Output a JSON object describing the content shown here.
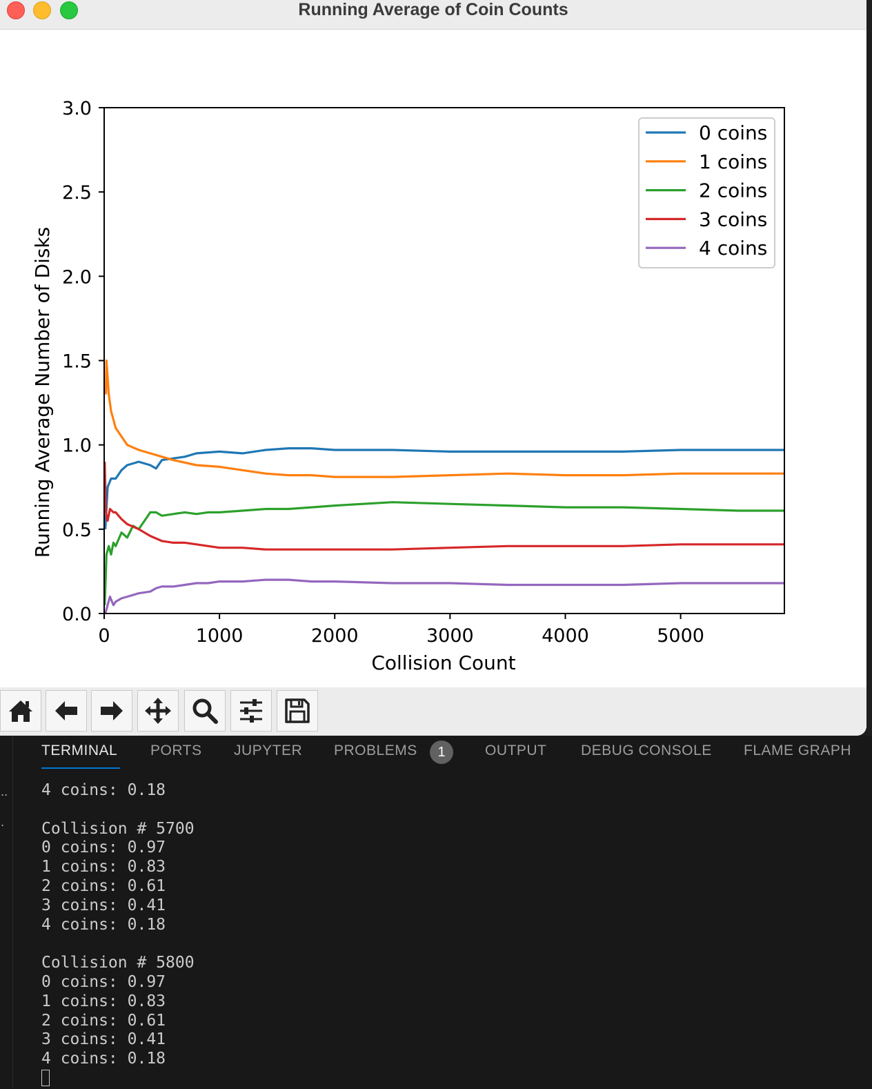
{
  "window": {
    "title": "Running Average of Coin Counts"
  },
  "chart_data": {
    "type": "line",
    "title": "",
    "xlabel": "Collision Count",
    "ylabel": "Running Average Number of Disks",
    "xlim": [
      0,
      5900
    ],
    "ylim": [
      0,
      3.0
    ],
    "xticks": [
      0,
      1000,
      2000,
      3000,
      4000,
      5000
    ],
    "yticks": [
      0.0,
      0.5,
      1.0,
      1.5,
      2.0,
      2.5,
      3.0
    ],
    "ytick_labels": [
      "0.0",
      "0.5",
      "1.0",
      "1.5",
      "2.0",
      "2.5",
      "3.0"
    ],
    "grid": false,
    "legend_position": "upper-right",
    "series": [
      {
        "name": "0 coins",
        "color": "#1f77b4",
        "x": [
          10,
          30,
          60,
          100,
          150,
          200,
          300,
          400,
          450,
          500,
          600,
          700,
          800,
          1000,
          1200,
          1400,
          1600,
          1800,
          2000,
          2200,
          2500,
          3000,
          3500,
          4000,
          4500,
          5000,
          5500,
          5900
        ],
        "y": [
          0.5,
          0.75,
          0.8,
          0.8,
          0.85,
          0.88,
          0.9,
          0.88,
          0.86,
          0.91,
          0.92,
          0.93,
          0.95,
          0.96,
          0.95,
          0.97,
          0.98,
          0.98,
          0.97,
          0.97,
          0.97,
          0.96,
          0.96,
          0.96,
          0.96,
          0.97,
          0.97,
          0.97
        ]
      },
      {
        "name": "1 coins",
        "color": "#ff7f0e",
        "x": [
          15,
          20,
          40,
          60,
          80,
          100,
          150,
          200,
          300,
          400,
          500,
          600,
          800,
          1000,
          1200,
          1400,
          1600,
          1800,
          2000,
          2200,
          2500,
          3000,
          3500,
          4000,
          4500,
          5000,
          5500,
          5900
        ],
        "y": [
          1.3,
          1.5,
          1.3,
          1.2,
          1.15,
          1.1,
          1.05,
          1.0,
          0.97,
          0.95,
          0.93,
          0.91,
          0.88,
          0.87,
          0.85,
          0.83,
          0.82,
          0.82,
          0.81,
          0.81,
          0.81,
          0.82,
          0.83,
          0.82,
          0.82,
          0.83,
          0.83,
          0.83
        ]
      },
      {
        "name": "2 coins",
        "color": "#2ca02c",
        "x": [
          5,
          20,
          40,
          60,
          80,
          100,
          150,
          200,
          250,
          300,
          350,
          400,
          450,
          500,
          600,
          700,
          800,
          900,
          1000,
          1200,
          1400,
          1600,
          1800,
          2000,
          2500,
          3000,
          3500,
          4000,
          4500,
          5000,
          5500,
          5900
        ],
        "y": [
          0.05,
          0.35,
          0.4,
          0.35,
          0.42,
          0.4,
          0.48,
          0.45,
          0.52,
          0.5,
          0.55,
          0.6,
          0.6,
          0.58,
          0.59,
          0.6,
          0.59,
          0.6,
          0.6,
          0.61,
          0.62,
          0.62,
          0.63,
          0.64,
          0.66,
          0.65,
          0.64,
          0.63,
          0.63,
          0.62,
          0.61,
          0.61
        ]
      },
      {
        "name": "3 coins",
        "color": "#d62728",
        "x": [
          5,
          15,
          30,
          50,
          80,
          100,
          150,
          200,
          300,
          400,
          500,
          600,
          700,
          800,
          1000,
          1200,
          1400,
          1600,
          1800,
          2000,
          2500,
          3000,
          3500,
          4000,
          4500,
          5000,
          5500,
          5900
        ],
        "y": [
          0.9,
          0.6,
          0.55,
          0.62,
          0.6,
          0.6,
          0.56,
          0.53,
          0.5,
          0.46,
          0.43,
          0.42,
          0.42,
          0.41,
          0.39,
          0.39,
          0.38,
          0.38,
          0.38,
          0.38,
          0.38,
          0.39,
          0.4,
          0.4,
          0.4,
          0.41,
          0.41,
          0.41
        ]
      },
      {
        "name": "4 coins",
        "color": "#9467bd",
        "x": [
          10,
          30,
          50,
          80,
          100,
          150,
          200,
          300,
          400,
          450,
          500,
          600,
          700,
          800,
          900,
          1000,
          1200,
          1400,
          1600,
          1800,
          2000,
          2500,
          3000,
          3500,
          4000,
          4500,
          5000,
          5500,
          5900
        ],
        "y": [
          0.0,
          0.05,
          0.1,
          0.05,
          0.07,
          0.09,
          0.1,
          0.12,
          0.13,
          0.15,
          0.16,
          0.16,
          0.17,
          0.18,
          0.18,
          0.19,
          0.19,
          0.2,
          0.2,
          0.19,
          0.19,
          0.18,
          0.18,
          0.17,
          0.17,
          0.17,
          0.18,
          0.18,
          0.18
        ]
      }
    ]
  },
  "toolbar": {
    "tools": [
      {
        "name": "home",
        "icon": "home-icon"
      },
      {
        "name": "back",
        "icon": "arrow-left-icon"
      },
      {
        "name": "forward",
        "icon": "arrow-right-icon"
      },
      {
        "name": "pan",
        "icon": "move-icon"
      },
      {
        "name": "zoom",
        "icon": "magnifier-icon"
      },
      {
        "name": "configure",
        "icon": "sliders-icon"
      },
      {
        "name": "save",
        "icon": "floppy-disk-icon"
      }
    ]
  },
  "panel": {
    "tabs": [
      {
        "label": "TERMINAL",
        "active": true
      },
      {
        "label": "PORTS"
      },
      {
        "label": "JUPYTER"
      },
      {
        "label": "PROBLEMS",
        "badge": "1"
      },
      {
        "label": "OUTPUT"
      },
      {
        "label": "DEBUG CONSOLE"
      },
      {
        "label": "FLAME GRAPH"
      }
    ],
    "gutter": [
      "..",
      "."
    ],
    "terminal_lines": [
      "4 coins: 0.18",
      "",
      "Collision # 5700",
      "0 coins: 0.97",
      "1 coins: 0.83",
      "2 coins: 0.61",
      "3 coins: 0.41",
      "4 coins: 0.18",
      "",
      "Collision # 5800",
      "0 coins: 0.97",
      "1 coins: 0.83",
      "2 coins: 0.61",
      "3 coins: 0.41",
      "4 coins: 0.18"
    ]
  }
}
